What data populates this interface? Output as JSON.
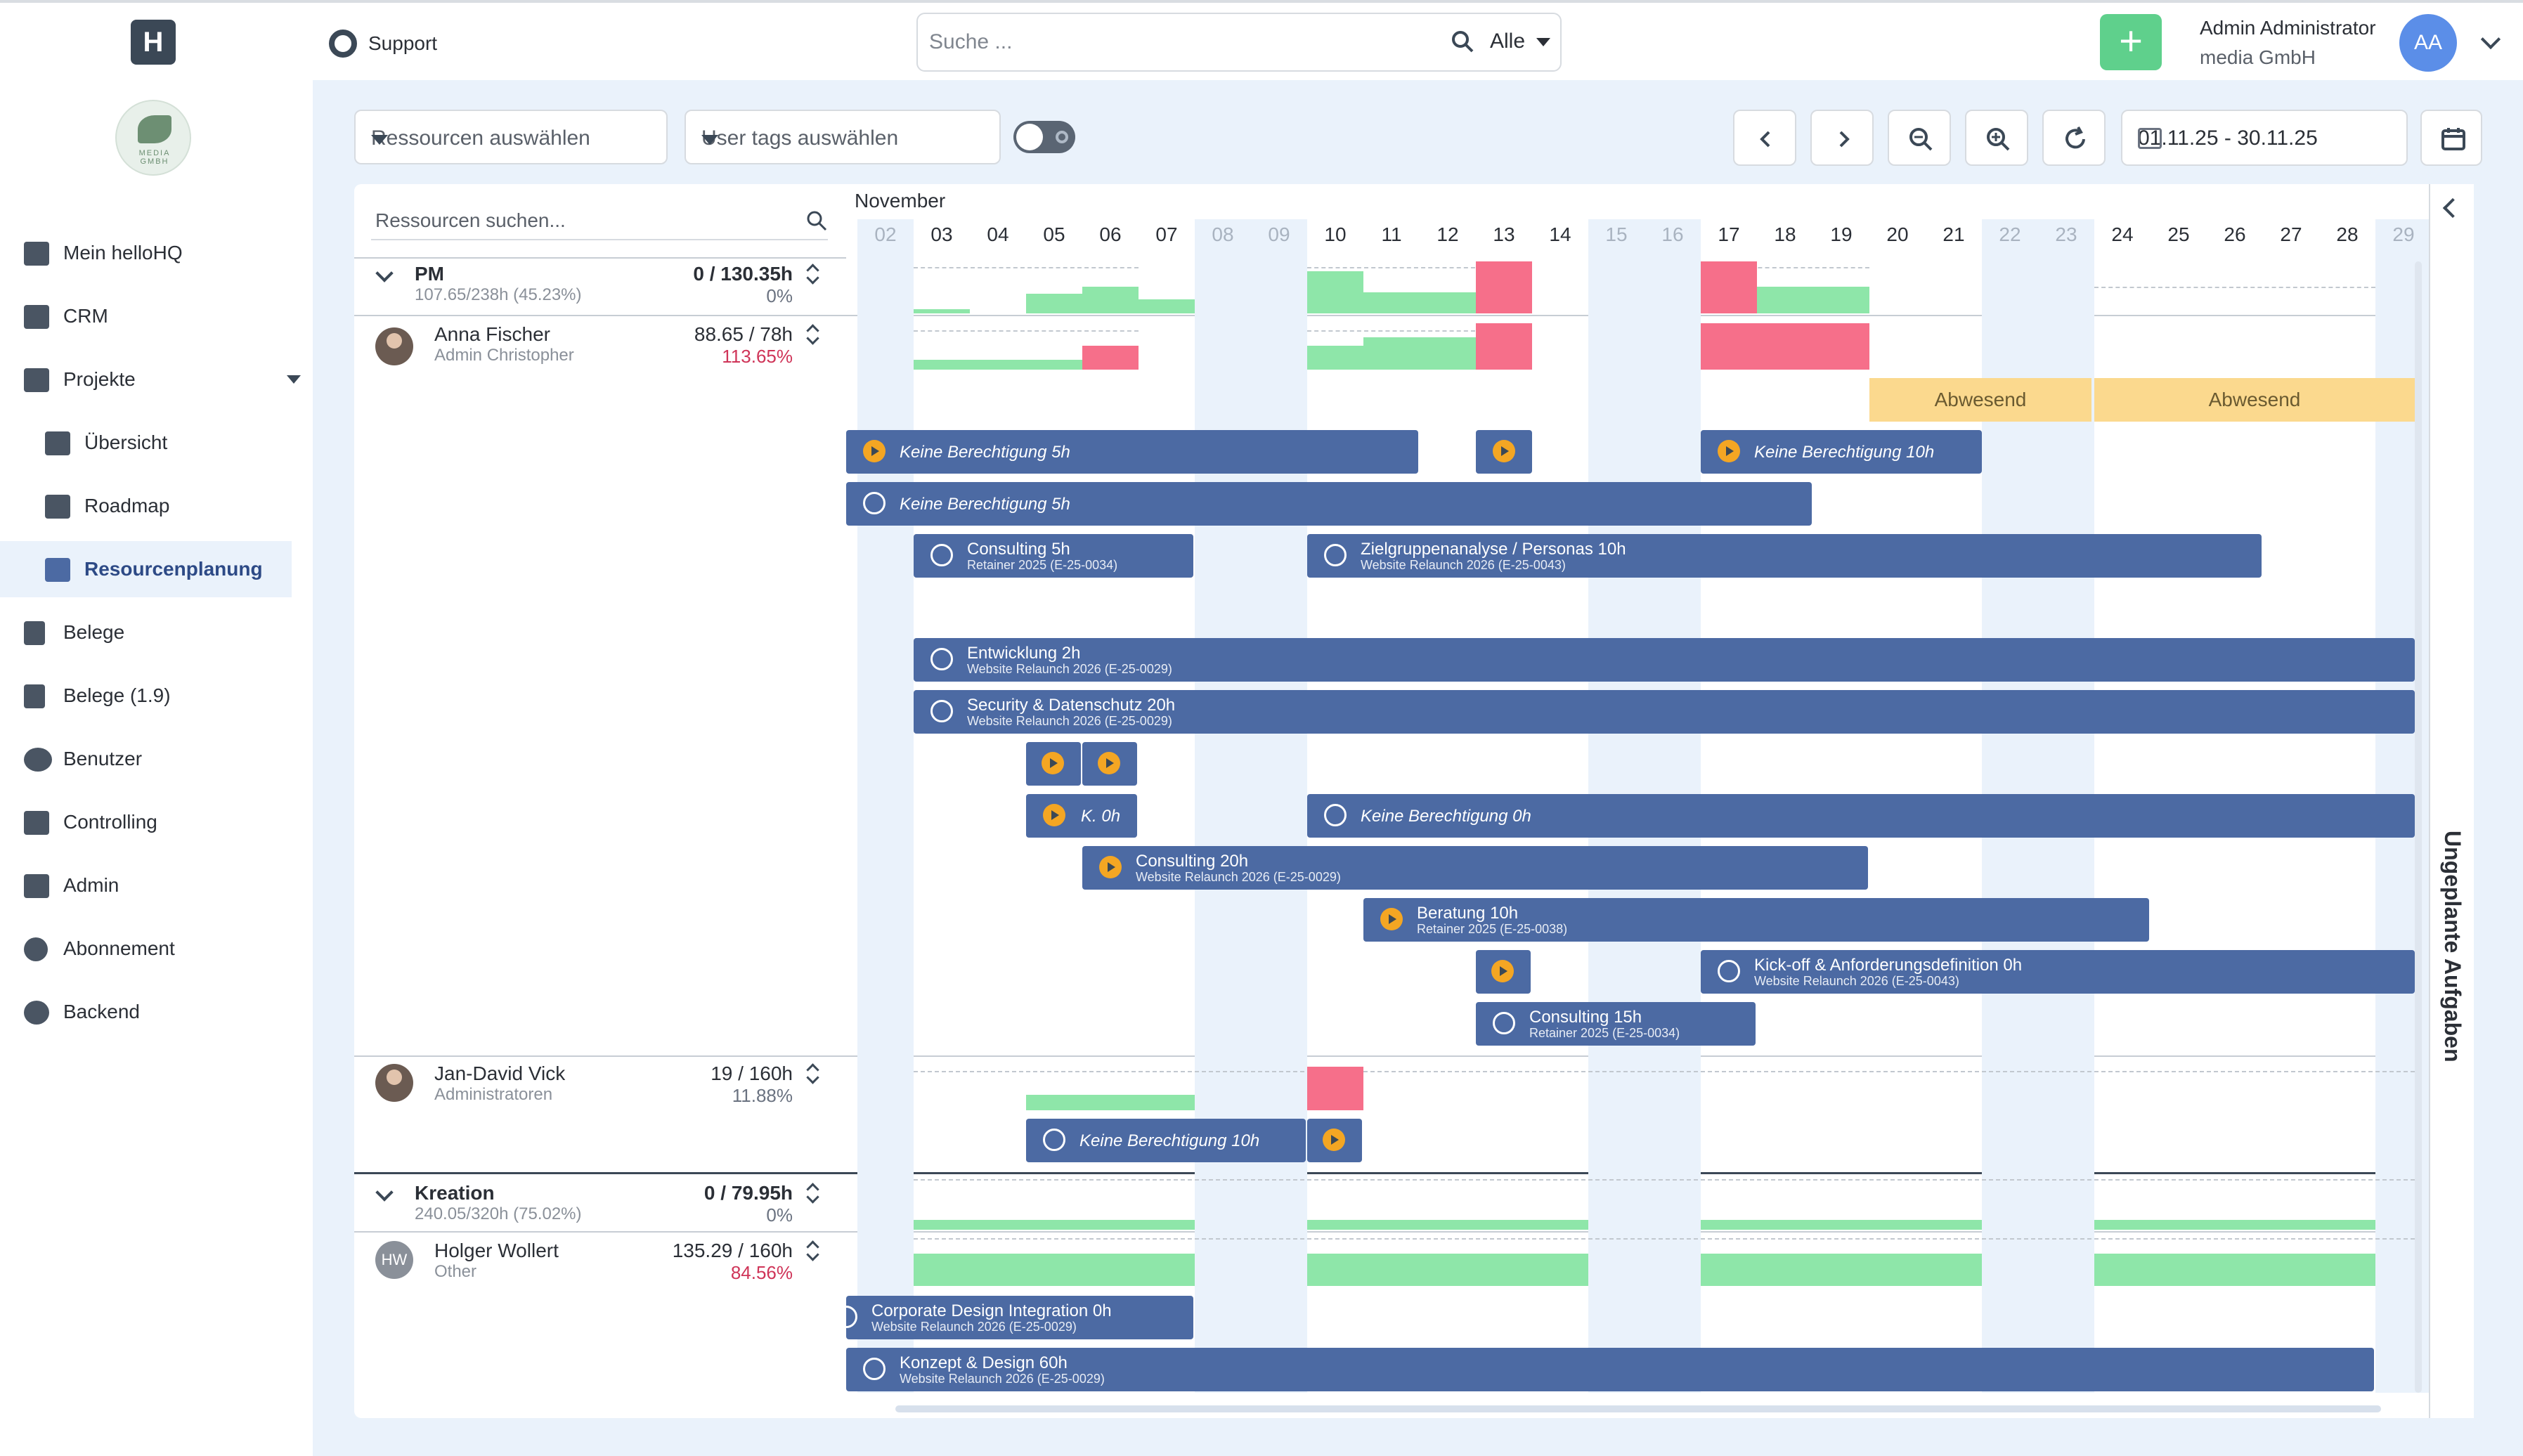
{
  "header": {
    "support_label": "Support",
    "search_placeholder": "Suche ...",
    "search_scope": "Alle",
    "add_label": "+",
    "user_name": "Admin Administrator",
    "user_company": "media GmbH",
    "user_initials": "AA",
    "logo_text": "H",
    "org_logo_text": "MEDIA GMBH"
  },
  "sidebar": {
    "items": [
      {
        "label": "Mein helloHQ"
      },
      {
        "label": "CRM"
      },
      {
        "label": "Projekte"
      },
      {
        "label": "Übersicht"
      },
      {
        "label": "Roadmap"
      },
      {
        "label": "Resourcenplanung"
      },
      {
        "label": "Belege"
      },
      {
        "label": "Belege (1.9)"
      },
      {
        "label": "Benutzer"
      },
      {
        "label": "Controlling"
      },
      {
        "label": "Admin"
      },
      {
        "label": "Abonnement"
      },
      {
        "label": "Backend"
      }
    ]
  },
  "toolbar": {
    "resources_placeholder": "Ressourcen auswählen",
    "tags_placeholder": "User tags auswählen",
    "date_range": "01.11.25 - 30.11.25"
  },
  "resources": {
    "search_placeholder": "Ressourcen suchen...",
    "pm": {
      "name": "PM",
      "sub": "107.65/238h (45.23%)",
      "hours": "0 / 130.35h",
      "pct": "0%"
    },
    "anna": {
      "name": "Anna Fischer",
      "sub": "Admin Christopher",
      "hours": "88.65 / 78h",
      "pct": "113.65%"
    },
    "jan": {
      "name": "Jan-David Vick",
      "sub": "Administratoren",
      "hours": "19 / 160h",
      "pct": "11.88%"
    },
    "kreation": {
      "name": "Kreation",
      "sub": "240.05/320h (75.02%)",
      "hours": "0 / 79.95h",
      "pct": "0%"
    },
    "holger": {
      "name": "Holger Wollert",
      "sub": "Other",
      "hours": "135.29 / 160h",
      "pct": "84.56%",
      "initials": "HW"
    }
  },
  "timeline": {
    "month": "November",
    "days": [
      "02",
      "03",
      "04",
      "05",
      "06",
      "07",
      "08",
      "09",
      "10",
      "11",
      "12",
      "13",
      "14",
      "15",
      "16",
      "17",
      "18",
      "19",
      "20",
      "21",
      "22",
      "23",
      "24",
      "25",
      "26",
      "27",
      "28",
      "29"
    ],
    "absent_label": "Abwesend"
  },
  "tasks": {
    "t1": {
      "title": "Keine Berechtigung  5h"
    },
    "t2": {
      "title": "Keine Berechtigung  10h"
    },
    "t3": {
      "title": "Keine Berechtigung  5h"
    },
    "t4": {
      "title": "Consulting  5h",
      "sub": "Retainer 2025 (E-25-0034)"
    },
    "t5": {
      "title": "Zielgruppenanalyse / Personas  10h",
      "sub": "Website Relaunch 2026 (E-25-0043)"
    },
    "t6": {
      "title": "Entwicklung  2h",
      "sub": "Website Relaunch 2026 (E-25-0029)"
    },
    "t7": {
      "title": "Security & Datenschutz  20h",
      "sub": "Website Relaunch 2026 (E-25-0029)"
    },
    "t8": {
      "title": "K.  0h"
    },
    "t9": {
      "title": "Keine Berechtigung  0h"
    },
    "t10": {
      "title": "Consulting  20h",
      "sub": "Website Relaunch 2026 (E-25-0029)"
    },
    "t11": {
      "title": "Beratung  10h",
      "sub": "Retainer 2025 (E-25-0038)"
    },
    "t12": {
      "title": "Kick-off & Anforderungsdefinition  0h",
      "sub": "Website Relaunch 2026 (E-25-0043)"
    },
    "t13": {
      "title": "Consulting  15h",
      "sub": "Retainer 2025 (E-25-0034)"
    },
    "t14": {
      "title": "Keine Berechtigung  10h"
    },
    "t15": {
      "title": "Corporate Design Integration  0h",
      "sub": "Website Relaunch 2026 (E-25-0029)"
    },
    "t16": {
      "title": "Konzept & Design  60h",
      "sub": "Website Relaunch 2026 (E-25-0029)"
    }
  },
  "right_panel": {
    "title": "Ungeplante Aufgaben"
  },
  "colors": {
    "accent": "#4c6aa3",
    "add": "#5fd08c",
    "overload": "#f66f8a",
    "load": "#8ee6a9",
    "absent": "#fbd98e"
  }
}
